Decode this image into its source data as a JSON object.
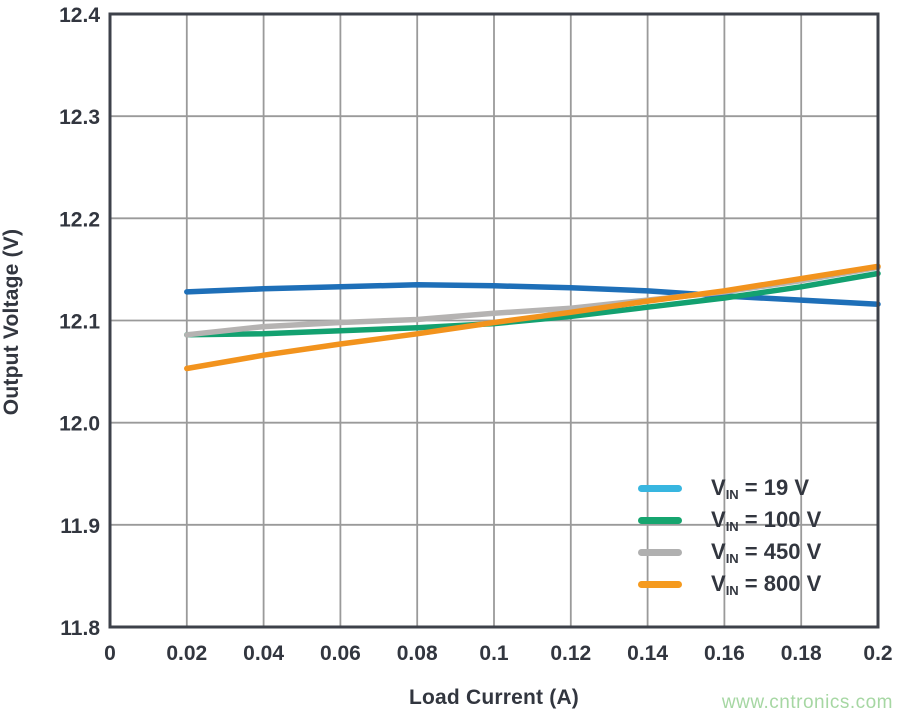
{
  "watermark": {
    "text": "www.cntronics.com",
    "color": "#a6d7a3"
  },
  "chart_data": {
    "type": "line",
    "title": "",
    "xlabel": "Load Current (A)",
    "ylabel": "Output Voltage (V)",
    "xlim": [
      0,
      0.2
    ],
    "ylim": [
      11.8,
      12.4
    ],
    "grid": true,
    "legend_position": "lower right",
    "x_ticks": {
      "values": [
        0,
        0.02,
        0.04,
        0.06,
        0.08,
        0.1,
        0.12,
        0.14,
        0.16,
        0.18,
        0.2
      ],
      "labels": [
        "0",
        "0.02",
        "0.04",
        "0.06",
        "0.08",
        "0.1",
        "0.12",
        "0.14",
        "0.16",
        "0.18",
        "0.2"
      ]
    },
    "y_ticks": {
      "values": [
        11.8,
        11.9,
        12.0,
        12.1,
        12.2,
        12.3,
        12.4
      ],
      "labels": [
        "11.8",
        "11.9",
        "12.0",
        "12.1",
        "12.2",
        "12.3",
        "12.4"
      ]
    },
    "x": [
      0.02,
      0.04,
      0.06,
      0.08,
      0.1,
      0.12,
      0.14,
      0.16,
      0.18,
      0.2
    ],
    "series": [
      {
        "name": "VIN = 19 V",
        "legend_base": "V",
        "legend_sub": "IN",
        "legend_rest": " = 19 V",
        "line_color": "#1e6fb8",
        "legend_color": "#38b6e0",
        "values": [
          12.128,
          12.131,
          12.133,
          12.135,
          12.134,
          12.132,
          12.129,
          12.124,
          12.12,
          12.116
        ]
      },
      {
        "name": "VIN = 100 V",
        "legend_base": "V",
        "legend_sub": "IN",
        "legend_rest": " = 100 V",
        "line_color": "#13a170",
        "legend_color": "#16a56f",
        "values": [
          12.086,
          12.087,
          12.09,
          12.093,
          12.097,
          12.104,
          12.113,
          12.122,
          12.133,
          12.146
        ]
      },
      {
        "name": "VIN = 450 V",
        "legend_base": "V",
        "legend_sub": "IN",
        "legend_rest": " = 450 V",
        "line_color": "#b5b3b2",
        "legend_color": "#b0b0b0",
        "values": [
          12.086,
          12.094,
          12.098,
          12.101,
          12.107,
          12.112,
          12.12,
          12.128,
          12.139,
          12.152
        ]
      },
      {
        "name": "VIN = 800 V",
        "legend_base": "V",
        "legend_sub": "IN",
        "legend_rest": " = 800 V",
        "line_color": "#f2931d",
        "legend_color": "#f59a1e",
        "values": [
          12.053,
          12.066,
          12.077,
          12.087,
          12.098,
          12.108,
          12.119,
          12.129,
          12.141,
          12.153
        ]
      }
    ],
    "colors": {
      "grid": "#9a9a9a",
      "border": "#3d414a",
      "text": "#32363f"
    }
  }
}
